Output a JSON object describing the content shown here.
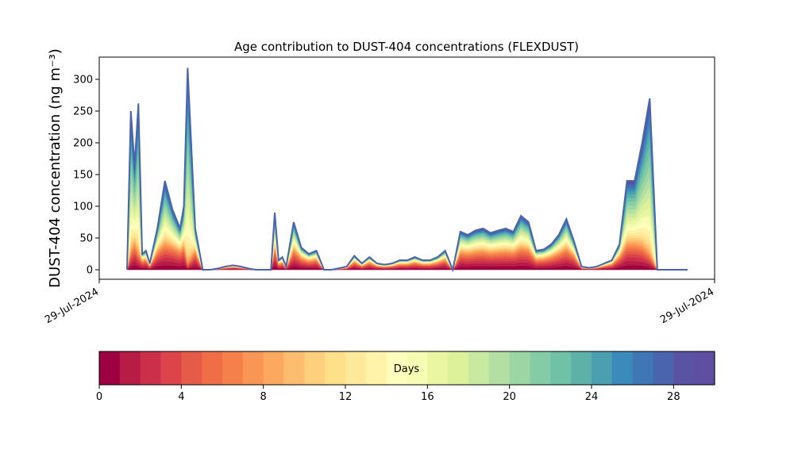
{
  "chart_data": {
    "type": "area",
    "title": "Age contribution to DUST-404 concentrations (FLEXDUST)",
    "ylabel": "DUST-404 concentration (ng m⁻³)",
    "xlabel": "",
    "x_tick_labels": [
      "29-Jul-2024",
      "29-Jul-2024"
    ],
    "ylim": [
      -15,
      335
    ],
    "y_ticks": [
      0,
      50,
      100,
      150,
      200,
      250,
      300
    ],
    "grid": false,
    "time_steps": [
      1,
      1.5,
      2,
      2.5,
      3,
      3.5,
      4,
      5,
      6,
      7,
      8,
      8.5,
      9,
      10,
      11,
      12,
      13,
      14,
      15,
      16,
      17,
      18,
      20,
      20.5,
      21,
      21.5,
      22,
      23,
      24,
      25,
      26,
      27,
      28,
      30,
      31,
      32,
      33,
      34,
      35,
      36,
      37,
      38,
      39,
      40,
      41,
      42,
      43,
      44,
      45,
      46,
      47,
      48,
      49,
      50,
      51,
      52,
      53,
      54,
      55,
      56,
      57,
      58,
      59,
      60,
      61,
      62,
      63,
      64,
      65,
      66,
      67,
      68,
      69,
      70,
      71,
      71.5,
      72,
      72.5,
      73,
      73.5,
      74,
      75
    ],
    "total_concentration": [
      0,
      250,
      165,
      262,
      25,
      30,
      10,
      65,
      140,
      95,
      65,
      100,
      318,
      65,
      0,
      0,
      2,
      5,
      7,
      5,
      2,
      0,
      0,
      90,
      15,
      20,
      5,
      75,
      35,
      25,
      30,
      0,
      0,
      5,
      22,
      10,
      20,
      10,
      8,
      10,
      15,
      15,
      20,
      15,
      15,
      20,
      30,
      0,
      60,
      55,
      62,
      65,
      58,
      62,
      65,
      60,
      85,
      75,
      30,
      32,
      40,
      55,
      80,
      45,
      5,
      3,
      5,
      10,
      15,
      40,
      140,
      140,
      200,
      270,
      0,
      0,
      0,
      0,
      0,
      0,
      0,
      0
    ],
    "colorbar": {
      "label": "Days",
      "min": 0,
      "max": 30,
      "ticks": [
        0,
        4,
        8,
        12,
        16,
        20,
        24,
        28
      ],
      "colors": [
        "#9e0142",
        "#b71c45",
        "#cc2f4a",
        "#dc444a",
        "#e65a48",
        "#f06e45",
        "#f6804b",
        "#f99555",
        "#fca95f",
        "#fdbd6e",
        "#fed07e",
        "#fee08b",
        "#feea9a",
        "#fff3a9",
        "#fffdbc",
        "#f7fcb4",
        "#eaf7a0",
        "#dcf19a",
        "#c8e9a0",
        "#b3e0a2",
        "#9cd6a4",
        "#83cca5",
        "#6fc2a5",
        "#5db1a9",
        "#4aa0b1",
        "#3a8bbb",
        "#3f77b5",
        "#4a64ae",
        "#5a53a3",
        "#5e4fa2"
      ]
    }
  }
}
